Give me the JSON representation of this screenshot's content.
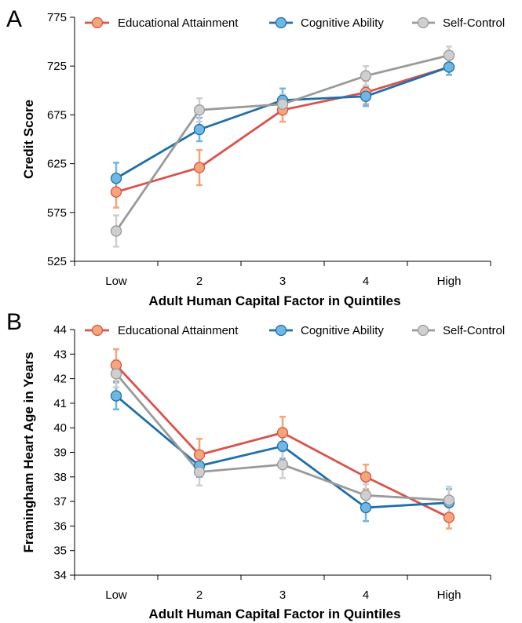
{
  "chart_data": [
    {
      "panel": "A",
      "type": "line",
      "categories": [
        "Low",
        "2",
        "3",
        "4",
        "High"
      ],
      "xlabel": "Adult Human Capital Factor in Quintiles",
      "ylabel": "Credit Score",
      "ylim": [
        525,
        775
      ],
      "yticks": [
        "525",
        "575",
        "625",
        "675",
        "725",
        "775"
      ],
      "error_bars": true,
      "legend": "top",
      "series": [
        {
          "name": "Educational Attainment",
          "color": "#d9534a",
          "marker_color": "#f4a678",
          "values": [
            596,
            621,
            680,
            698,
            724
          ],
          "err": [
            16,
            18,
            12,
            12,
            8
          ]
        },
        {
          "name": "Cognitive Ability",
          "color": "#1f6fa8",
          "marker_color": "#6fb7e5",
          "values": [
            610,
            660,
            690,
            694,
            724
          ],
          "err": [
            16,
            12,
            12,
            10,
            8
          ]
        },
        {
          "name": "Self-Control",
          "color": "#9a9a9a",
          "marker_color": "#cfcfcf",
          "values": [
            556,
            680,
            686,
            715,
            736
          ],
          "err": [
            16,
            12,
            10,
            10,
            9
          ]
        }
      ]
    },
    {
      "panel": "B",
      "type": "line",
      "categories": [
        "Low",
        "2",
        "3",
        "4",
        "High"
      ],
      "xlabel": "Adult Human Capital Factor in Quintiles",
      "ylabel": "Framingham Heart Age in Years",
      "ylim": [
        34,
        44
      ],
      "yticks": [
        "34",
        "35",
        "36",
        "37",
        "38",
        "39",
        "40",
        "41",
        "42",
        "43",
        "44"
      ],
      "error_bars": true,
      "legend": "top",
      "series": [
        {
          "name": "Educational Attainment",
          "color": "#d9534a",
          "marker_color": "#f4a678",
          "values": [
            42.55,
            38.9,
            39.8,
            38.0,
            36.35
          ],
          "err": [
            0.65,
            0.65,
            0.65,
            0.5,
            0.45
          ]
        },
        {
          "name": "Cognitive Ability",
          "color": "#1f6fa8",
          "marker_color": "#6fb7e5",
          "values": [
            41.3,
            38.45,
            39.25,
            36.75,
            36.95
          ],
          "err": [
            0.55,
            0.45,
            0.5,
            0.55,
            0.55
          ]
        },
        {
          "name": "Self-Control",
          "color": "#9a9a9a",
          "marker_color": "#cfcfcf",
          "values": [
            42.2,
            38.2,
            38.5,
            37.25,
            37.05
          ],
          "err": [
            0.55,
            0.55,
            0.55,
            0.45,
            0.55
          ]
        }
      ]
    }
  ]
}
